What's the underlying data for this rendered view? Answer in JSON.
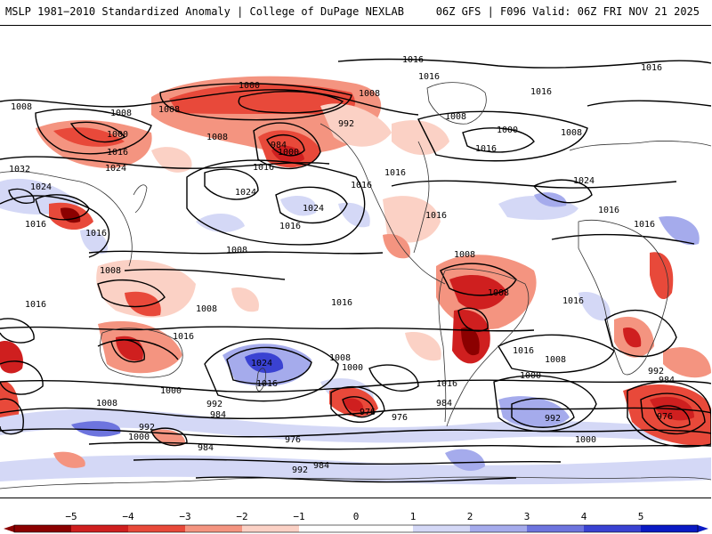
{
  "header": {
    "left_title": "MSLP 1981−2010 Standardized Anomaly | College of DuPage NEXLAB",
    "right_title": "06Z GFS | F096 Valid: 06Z FRI NOV 21 2025"
  },
  "colors": {
    "neg5": "#8b0000",
    "neg4": "#cf1f1f",
    "neg3": "#e8493a",
    "neg2": "#f49480",
    "neg1": "#fbd1c5",
    "zero": "#ffffff",
    "pos1": "#d4d8f6",
    "pos2": "#a5abec",
    "pos3": "#6d74de",
    "pos4": "#3a42d2",
    "pos5": "#0a1ac4"
  },
  "map": {
    "isobar_labels": [
      "1016",
      "1016",
      "1016",
      "1016",
      "1016",
      "1016",
      "1016",
      "1016",
      "1008",
      "1008",
      "1008",
      "1008",
      "1008",
      "1008",
      "1008",
      "1008",
      "1008",
      "1008",
      "1008",
      "1008",
      "1008",
      "1008",
      "1008",
      "1000",
      "1000",
      "1000",
      "1000",
      "1000",
      "1000",
      "1000",
      "1000",
      "1000",
      "992",
      "992",
      "992",
      "992",
      "992",
      "992",
      "984",
      "984",
      "984",
      "984",
      "984",
      "984",
      "976",
      "976",
      "976",
      "976",
      "1032",
      "1024",
      "1024",
      "1024",
      "1024",
      "1024",
      "1024",
      "1016",
      "1016",
      "1016",
      "1016",
      "1016",
      "1016",
      "1016",
      "1016",
      "1016",
      "1016",
      "1016",
      "1016",
      "1016",
      "1016"
    ]
  },
  "colorbar": {
    "tick_labels": [
      "−5",
      "−4",
      "−3",
      "−2",
      "−1",
      "0",
      "1",
      "2",
      "3",
      "4",
      "5"
    ]
  }
}
